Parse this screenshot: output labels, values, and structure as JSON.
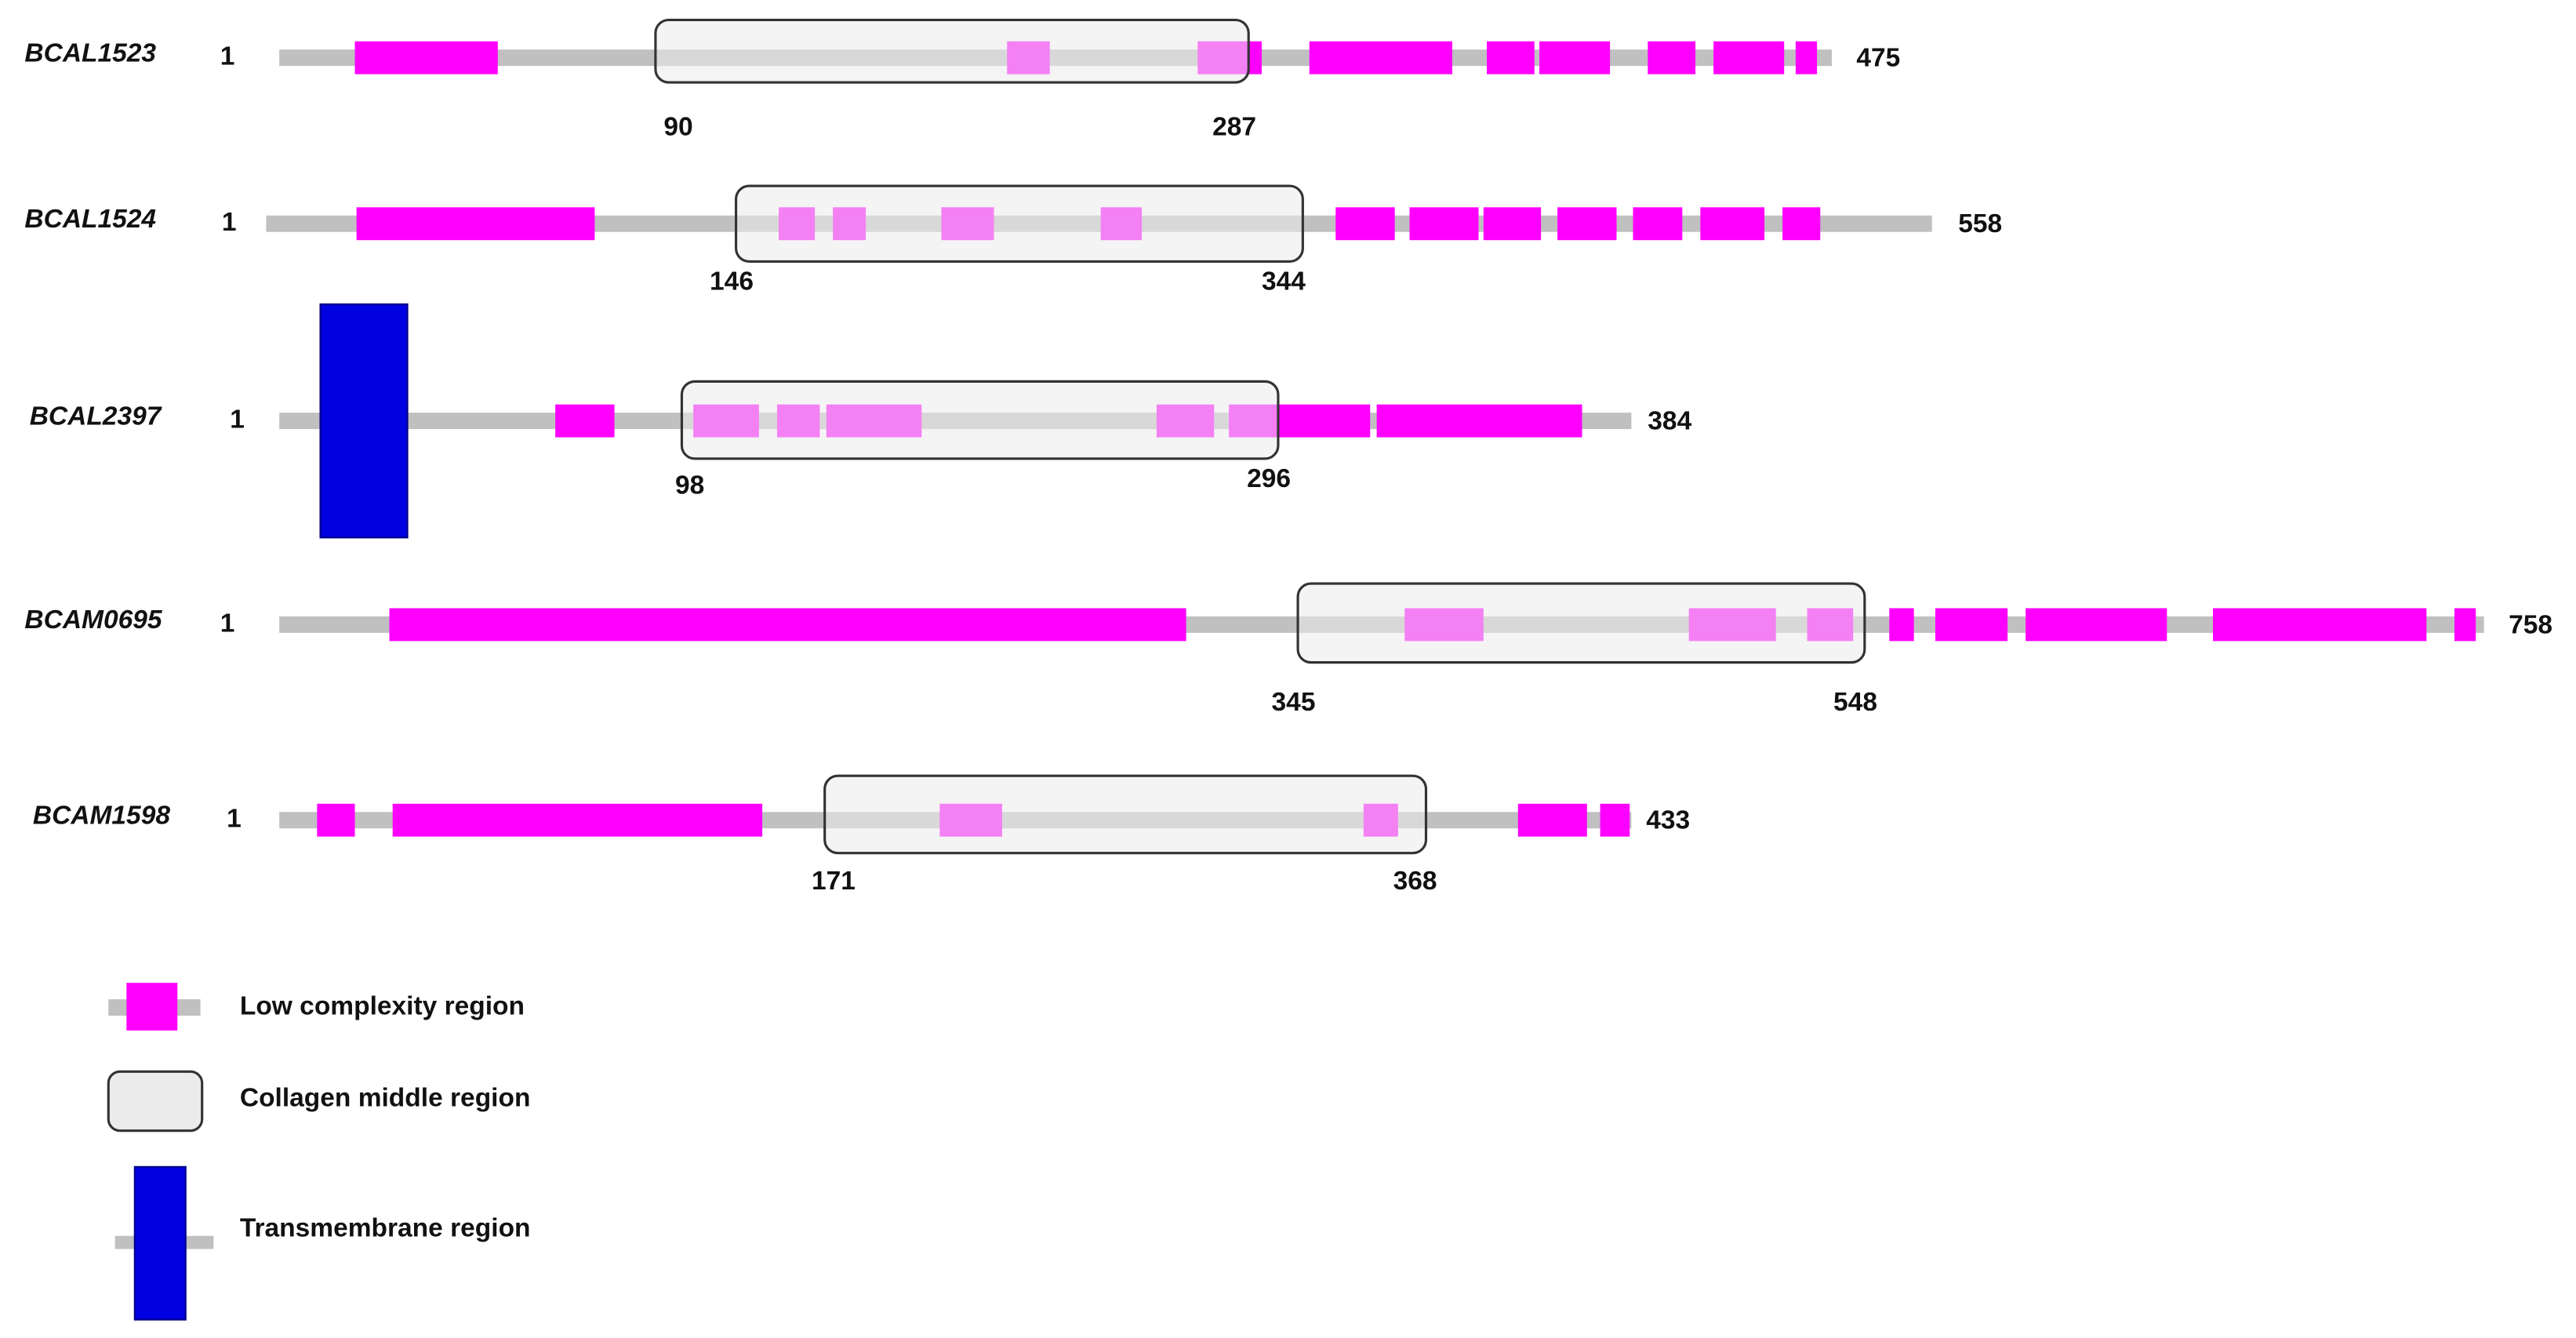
{
  "proteins": [
    {
      "name": "BCAL1523",
      "start": 1,
      "end": 475,
      "region_start": 90,
      "region_end": 287
    },
    {
      "name": "BCAL1524",
      "start": 1,
      "end": 558,
      "region_start": 146,
      "region_end": 344
    },
    {
      "name": "BCAL2397",
      "start": 1,
      "end": 384,
      "region_start": 98,
      "region_end": 296
    },
    {
      "name": "BCAM0695",
      "start": 1,
      "end": 758,
      "region_start": 345,
      "region_end": 548
    },
    {
      "name": "BCAM1598",
      "start": 1,
      "end": 433,
      "region_start": 171,
      "region_end": 368
    }
  ],
  "legend": [
    {
      "label": "Low complexity region"
    },
    {
      "label": "Collagen middle region"
    },
    {
      "label": "Transmembrane region"
    }
  ]
}
